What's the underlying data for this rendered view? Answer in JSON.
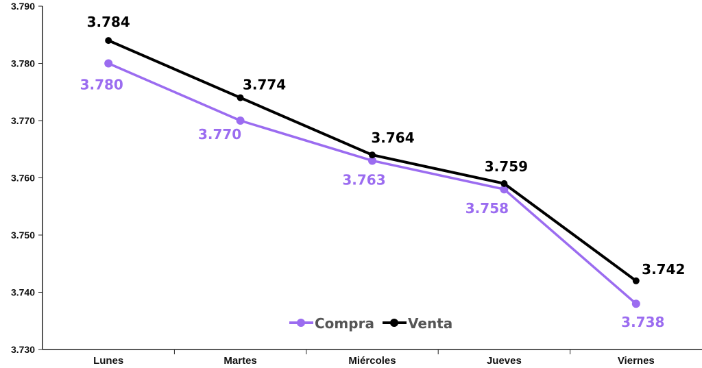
{
  "chart_data": {
    "type": "line",
    "categories": [
      "Lunes",
      "Martes",
      "Miércoles",
      "Jueves",
      "Viernes"
    ],
    "series": [
      {
        "name": "Compra",
        "color": "#9b6cf0",
        "values": [
          3.78,
          3.77,
          3.763,
          3.758,
          3.738
        ],
        "labels": [
          "3.780",
          "3.770",
          "3.763",
          "3.758",
          "3.738"
        ]
      },
      {
        "name": "Venta",
        "color": "#000000",
        "values": [
          3.784,
          3.774,
          3.764,
          3.759,
          3.742
        ],
        "labels": [
          "3.784",
          "3.774",
          "3.764",
          "3.759",
          "3.742"
        ]
      }
    ],
    "ylim": [
      3.73,
      3.79
    ],
    "yticks": [
      "3.730",
      "3.740",
      "3.750",
      "3.760",
      "3.770",
      "3.780",
      "3.790"
    ],
    "ytick_values": [
      3.73,
      3.74,
      3.75,
      3.76,
      3.77,
      3.78,
      3.79
    ],
    "grid": false,
    "legend_position": "bottom-center",
    "title": "",
    "xlabel": "",
    "ylabel": ""
  }
}
